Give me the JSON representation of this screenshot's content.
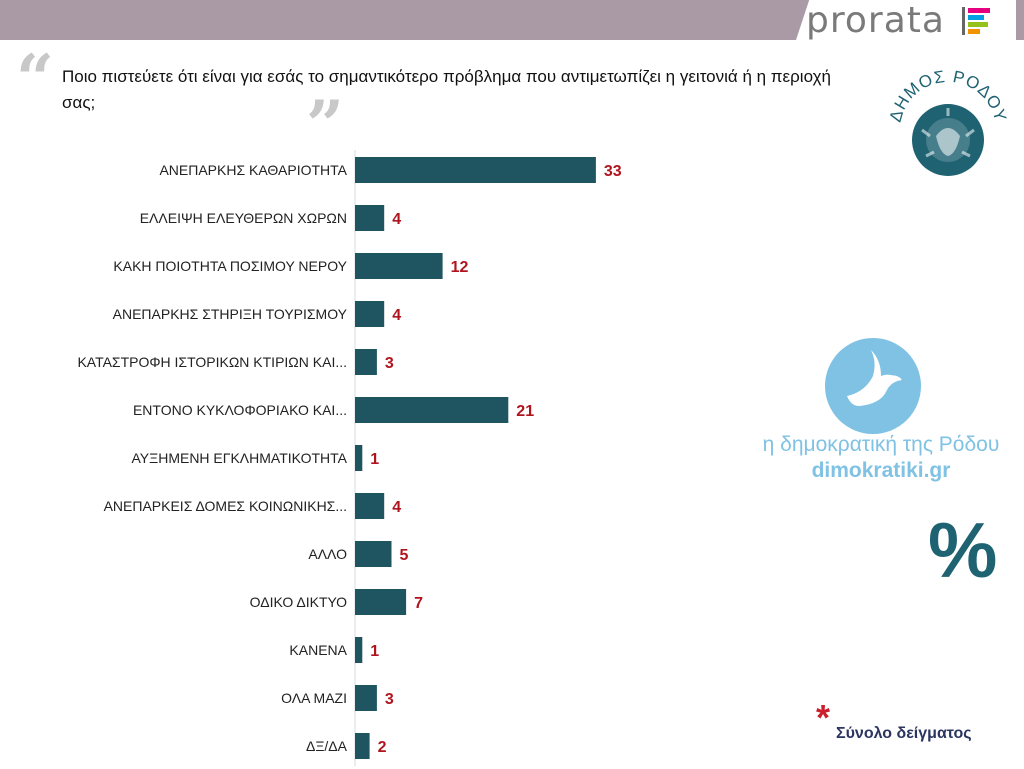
{
  "brand": {
    "name": "prorata",
    "colors": [
      "#e6007e",
      "#009fe3",
      "#95c11f",
      "#f39200"
    ]
  },
  "question": "Ποιο πιστεύετε ότι είναι για εσάς το σημαντικότερο πρόβλημα που αντιμετωπίζει η γειτονιά ή η περιοχή σας;",
  "seal": {
    "text": "ΔΗΜΟΣ ΡΟΔΟΥ",
    "color": "#1f6272"
  },
  "partner": {
    "name": "η δημοκρατική της Ρόδου",
    "site": "dimokratiki.gr",
    "color": "#7fc2e4"
  },
  "unit_symbol": "%",
  "footnote": {
    "mark": "*",
    "label": "Σύνολο δείγματος"
  },
  "chart_data": {
    "type": "bar",
    "orientation": "horizontal",
    "categories": [
      "ΑΝΕΠΑΡΚΗΣ ΚΑΘΑΡΙΟΤΗΤΑ",
      "ΕΛΛΕΙΨΗ ΕΛΕΥΘΕΡΩΝ ΧΩΡΩΝ",
      "ΚΑΚΗ ΠΟΙΟΤΗΤΑ ΠΟΣΙΜΟΥ ΝΕΡΟΥ",
      "ΑΝΕΠΑΡΚΗΣ ΣΤΗΡΙΞΗ ΤΟΥΡΙΣΜΟΥ",
      "ΚΑΤΑΣΤΡΟΦΗ ΙΣΤΟΡΙΚΩΝ ΚΤΙΡΙΩΝ ΚΑΙ...",
      "ΕΝΤΟΝΟ ΚΥΚΛΟΦΟΡΙΑΚΟ ΚΑΙ...",
      "ΑΥΞΗΜΕΝΗ ΕΓΚΛΗΜΑΤΙΚΟΤΗΤΑ",
      "ΑΝΕΠΑΡΚΕΙΣ ΔΟΜΕΣ ΚΟΙΝΩΝΙΚΗΣ...",
      "ΑΛΛΟ",
      "ΟΔΙΚΟ ΔΙΚΤΥΟ",
      "ΚΑΝΕΝΑ",
      "ΟΛΑ ΜΑΖΙ",
      "ΔΞ/ΔΑ"
    ],
    "values": [
      33,
      4,
      12,
      4,
      3,
      21,
      1,
      4,
      5,
      7,
      1,
      3,
      2
    ],
    "value_unit": "%",
    "bar_color": "#1f5560",
    "label_color": "#b0141e",
    "xlim": [
      0,
      50
    ],
    "grid": false,
    "legend": "none"
  }
}
